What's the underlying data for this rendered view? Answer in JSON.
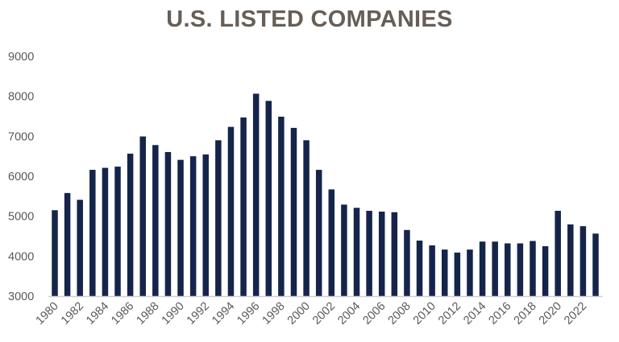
{
  "chart_data": {
    "type": "bar",
    "title": "U.S. LISTED COMPANIES",
    "xlabel": "",
    "ylabel": "",
    "ylim": [
      3000,
      9000
    ],
    "yticks": [
      "3000",
      "4000",
      "5000",
      "6000",
      "7000",
      "8000",
      "9000"
    ],
    "categories": [
      "1980",
      "1981",
      "1982",
      "1983",
      "1984",
      "1985",
      "1986",
      "1987",
      "1988",
      "1989",
      "1990",
      "1991",
      "1992",
      "1993",
      "1994",
      "1995",
      "1996",
      "1997",
      "1998",
      "1999",
      "2000",
      "2001",
      "2002",
      "2003",
      "2004",
      "2005",
      "2006",
      "2007",
      "2008",
      "2009",
      "2010",
      "2011",
      "2012",
      "2013",
      "2014",
      "2015",
      "2016",
      "2017",
      "2018",
      "2019",
      "2020",
      "2021",
      "2022",
      "2023"
    ],
    "xtick_labels": [
      "1980",
      "1982",
      "1984",
      "1986",
      "1988",
      "1990",
      "1992",
      "1994",
      "1996",
      "1998",
      "2000",
      "2002",
      "2004",
      "2006",
      "2008",
      "2010",
      "2012",
      "2014",
      "2016",
      "2018",
      "2020",
      "2022"
    ],
    "values": [
      5150,
      5580,
      5410,
      6160,
      6210,
      6240,
      6565,
      6995,
      6780,
      6605,
      6410,
      6500,
      6545,
      6900,
      7235,
      7470,
      8065,
      7885,
      7490,
      7210,
      6900,
      6160,
      5670,
      5290,
      5210,
      5135,
      5115,
      5100,
      4655,
      4390,
      4270,
      4165,
      4090,
      4165,
      4365,
      4365,
      4320,
      4320,
      4380,
      4250,
      5135,
      4795,
      4750,
      4565
    ],
    "grid": false,
    "legend": "none",
    "colors": {
      "bar": "#15244a",
      "title": "#675e56",
      "axis": "#d0d0d0"
    }
  }
}
